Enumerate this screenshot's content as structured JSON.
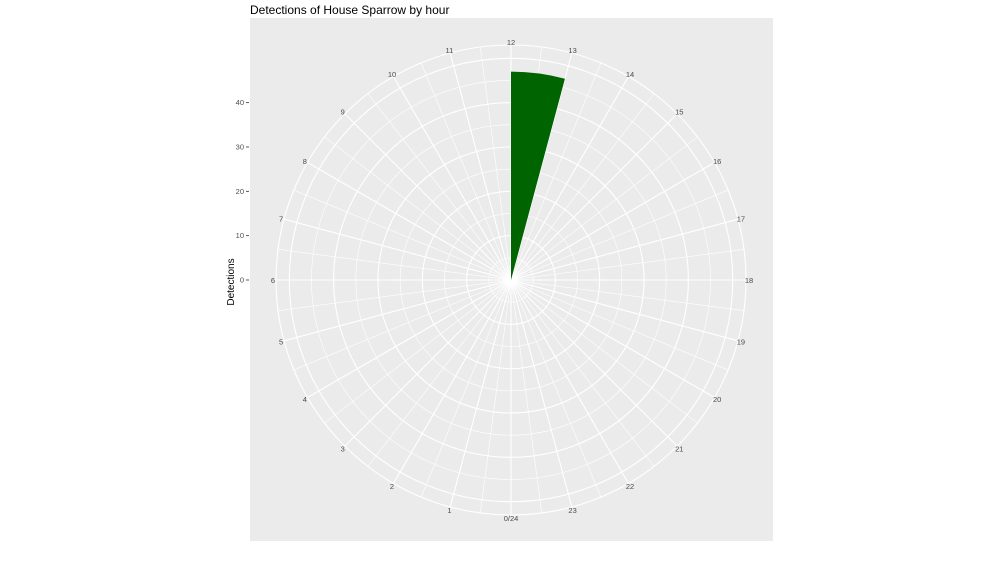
{
  "chart_data": {
    "type": "bar",
    "coord": "polar",
    "title": "Detections of House Sparrow by hour",
    "xlabel": "",
    "ylabel": "Detections",
    "x_tick_labels": [
      "0/24",
      "1",
      "2",
      "3",
      "4",
      "5",
      "6",
      "7",
      "8",
      "9",
      "10",
      "11",
      "12",
      "13",
      "14",
      "15",
      "16",
      "17",
      "18",
      "19",
      "20",
      "21",
      "22",
      "23"
    ],
    "y_ticks": [
      0,
      10,
      20,
      30,
      40
    ],
    "ylim": [
      0,
      53
    ],
    "categories": [
      12
    ],
    "values": [
      47
    ],
    "bar_width_hours": 1,
    "grid": true,
    "colors": {
      "bar": "#006400",
      "panel": "#ebebeb",
      "grid": "#ffffff"
    }
  }
}
